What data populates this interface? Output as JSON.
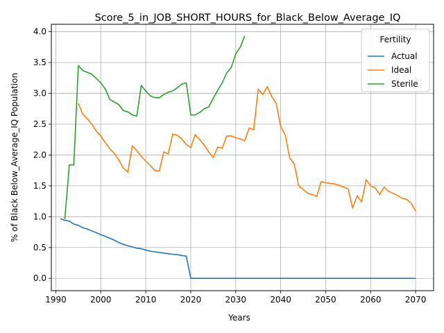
{
  "chart_data": {
    "type": "line",
    "title": "Score_5_in_JOB_SHORT_HOURS_for_Black_Below_Average_IQ",
    "xlabel": "Years",
    "ylabel": "% of Black Below_Average_IQ Population",
    "xlim": [
      1989,
      2074
    ],
    "ylim": [
      -0.2,
      4.12
    ],
    "xticks": [
      1990,
      2000,
      2010,
      2020,
      2030,
      2040,
      2050,
      2060,
      2070
    ],
    "yticks": [
      0.0,
      0.5,
      1.0,
      1.5,
      2.0,
      2.5,
      3.0,
      3.5,
      4.0
    ],
    "xtick_labels": [
      "1990",
      "2000",
      "2010",
      "2020",
      "2030",
      "2040",
      "2050",
      "2060",
      "2070"
    ],
    "ytick_labels": [
      "0.0",
      "0.5",
      "1.0",
      "1.5",
      "2.0",
      "2.5",
      "3.0",
      "3.5",
      "4.0"
    ],
    "grid": true,
    "legend": {
      "title": "Fertility",
      "position": "top-right"
    },
    "series": [
      {
        "name": "Actual",
        "color": "#1f77b4",
        "x": [
          1991,
          1992,
          1993,
          1994,
          1995,
          1996,
          1997,
          1998,
          1999,
          2000,
          2001,
          2002,
          2003,
          2004,
          2005,
          2006,
          2007,
          2008,
          2009,
          2010,
          2011,
          2012,
          2013,
          2014,
          2015,
          2016,
          2017,
          2018,
          2019,
          2020,
          2021,
          2025,
          2030,
          2035,
          2040,
          2045,
          2050,
          2055,
          2060,
          2065,
          2070
        ],
        "y": [
          0.97,
          0.94,
          0.93,
          0.88,
          0.86,
          0.82,
          0.8,
          0.77,
          0.74,
          0.71,
          0.68,
          0.65,
          0.62,
          0.58,
          0.55,
          0.53,
          0.51,
          0.49,
          0.48,
          0.46,
          0.44,
          0.43,
          0.42,
          0.41,
          0.4,
          0.39,
          0.385,
          0.37,
          0.36,
          0.0,
          0.0,
          0.0,
          0.0,
          0.0,
          0.0,
          0.0,
          0.0,
          0.0,
          0.0,
          0.0,
          0.0
        ]
      },
      {
        "name": "Ideal",
        "color": "#ff7f0e",
        "x": [
          1995,
          1996,
          1997,
          1998,
          1999,
          2000,
          2001,
          2002,
          2003,
          2004,
          2005,
          2006,
          2007,
          2008,
          2009,
          2010,
          2011,
          2012,
          2013,
          2014,
          2015,
          2016,
          2017,
          2018,
          2019,
          2020,
          2021,
          2022,
          2023,
          2024,
          2025,
          2026,
          2027,
          2028,
          2029,
          2030,
          2031,
          2032,
          2033,
          2034,
          2035,
          2036,
          2037,
          2038,
          2039,
          2040,
          2041,
          2042,
          2043,
          2044,
          2045,
          2046,
          2047,
          2048,
          2049,
          2050,
          2051,
          2052,
          2053,
          2054,
          2055,
          2056,
          2057,
          2058,
          2059,
          2060,
          2061,
          2062,
          2063,
          2064,
          2065,
          2066,
          2067,
          2068,
          2069,
          2070
        ],
        "y": [
          2.84,
          2.66,
          2.59,
          2.5,
          2.39,
          2.31,
          2.2,
          2.1,
          2.03,
          1.92,
          1.79,
          1.72,
          2.15,
          2.07,
          1.98,
          1.9,
          1.83,
          1.75,
          1.74,
          2.05,
          2.02,
          2.34,
          2.32,
          2.26,
          2.17,
          2.12,
          2.33,
          2.25,
          2.16,
          2.05,
          1.96,
          2.13,
          2.11,
          2.31,
          2.31,
          2.28,
          2.26,
          2.23,
          2.44,
          2.41,
          3.07,
          2.98,
          3.11,
          2.95,
          2.84,
          2.46,
          2.33,
          1.95,
          1.86,
          1.5,
          1.44,
          1.38,
          1.36,
          1.33,
          1.57,
          1.55,
          1.54,
          1.53,
          1.51,
          1.48,
          1.45,
          1.14,
          1.34,
          1.24,
          1.6,
          1.5,
          1.47,
          1.36,
          1.48,
          1.41,
          1.38,
          1.34,
          1.3,
          1.28,
          1.22,
          1.09
        ]
      },
      {
        "name": "Sterile",
        "color": "#2ca02c",
        "x": [
          1992,
          1993,
          1994,
          1995,
          1996,
          1997,
          1998,
          1999,
          2000,
          2001,
          2002,
          2003,
          2004,
          2005,
          2006,
          2007,
          2008,
          2009,
          2010,
          2011,
          2012,
          2013,
          2014,
          2015,
          2016,
          2017,
          2018,
          2019,
          2020,
          2021,
          2022,
          2023,
          2024,
          2025,
          2026,
          2027,
          2028,
          2029,
          2030,
          2031,
          2032
        ],
        "y": [
          0.96,
          1.84,
          1.84,
          3.45,
          3.37,
          3.34,
          3.31,
          3.24,
          3.17,
          3.07,
          2.9,
          2.86,
          2.82,
          2.72,
          2.7,
          2.65,
          2.63,
          3.13,
          3.04,
          2.96,
          2.93,
          2.93,
          2.98,
          3.02,
          3.04,
          3.09,
          3.15,
          3.17,
          2.65,
          2.65,
          2.69,
          2.75,
          2.78,
          2.92,
          3.05,
          3.17,
          3.33,
          3.42,
          3.64,
          3.75,
          3.93
        ]
      }
    ]
  }
}
